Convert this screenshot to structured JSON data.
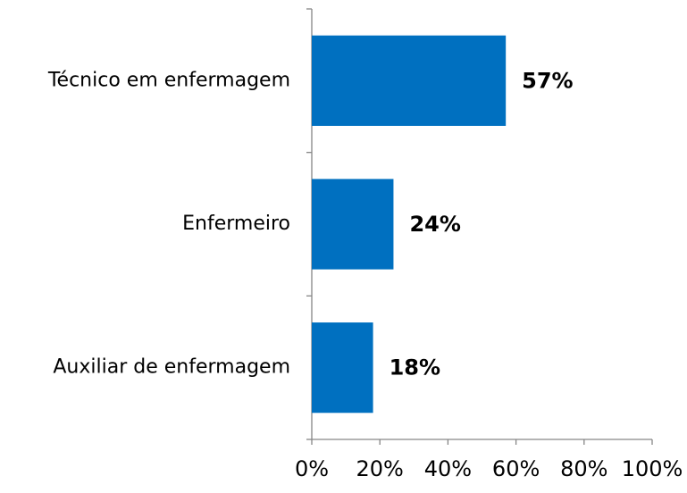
{
  "chart_data": {
    "type": "bar",
    "orientation": "horizontal",
    "categories": [
      "Técnico em enfermagem",
      "Enfermeiro",
      "Auxiliar de enfermagem"
    ],
    "values": [
      57,
      24,
      18
    ],
    "value_labels": [
      "57%",
      "24%",
      "18%"
    ],
    "color": "#0070c0",
    "xlim": [
      0,
      100
    ],
    "xticks": [
      {
        "value": 0,
        "label": "0%"
      },
      {
        "value": 20,
        "label": "20%"
      },
      {
        "value": 40,
        "label": "40%"
      },
      {
        "value": 60,
        "label": "60%"
      },
      {
        "value": 80,
        "label": "80%"
      },
      {
        "value": 100,
        "label": "100%"
      }
    ],
    "grid": false
  }
}
